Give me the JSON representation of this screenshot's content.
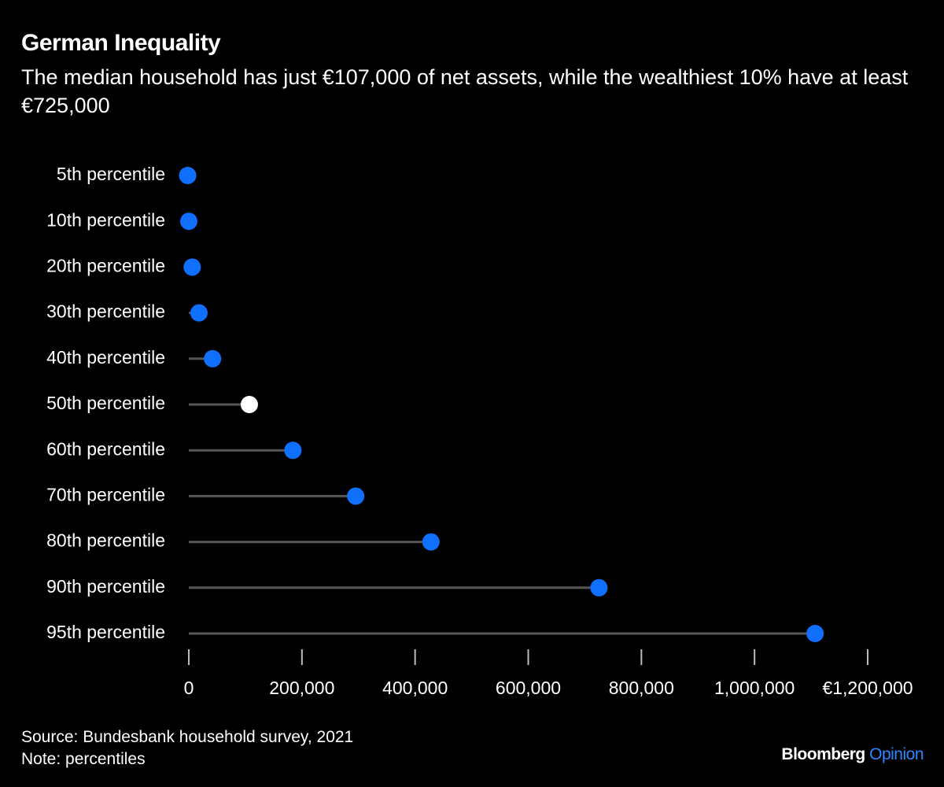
{
  "chart_data": {
    "type": "lollipop",
    "title": "German Inequality",
    "subtitle": "The median household has just €107,000 of net assets, while the wealthiest 10% have at least €725,000",
    "categories": [
      "5th percentile",
      "10th percentile",
      "20th percentile",
      "30th percentile",
      "40th percentile",
      "50th percentile",
      "60th percentile",
      "70th percentile",
      "80th percentile",
      "90th percentile",
      "95th percentile"
    ],
    "values": [
      -2000,
      0,
      6000,
      18000,
      42000,
      107000,
      184000,
      295000,
      428000,
      725000,
      1107000
    ],
    "point_colors": [
      "#0f6fff",
      "#0f6fff",
      "#0f6fff",
      "#0f6fff",
      "#0f6fff",
      "#ffffff",
      "#0f6fff",
      "#0f6fff",
      "#0f6fff",
      "#0f6fff",
      "#0f6fff"
    ],
    "stem_color": "#555555",
    "xlim": [
      0,
      1200000
    ],
    "xticks": [
      0,
      {
        "value": 200000,
        "label": "200,000"
      },
      {
        "value": 400000,
        "label": "400,000"
      },
      {
        "value": 600000,
        "label": "600,000"
      },
      {
        "value": 800000,
        "label": "800,000"
      },
      {
        "value": 1000000,
        "label": "1,000,000"
      },
      {
        "value": 1200000,
        "label": "€1,200,000"
      }
    ],
    "source": "Source: Bundesbank household survey, 2021",
    "note": "Note: percentiles",
    "brand": "Bloomberg",
    "brand_suffix": "Opinion"
  }
}
